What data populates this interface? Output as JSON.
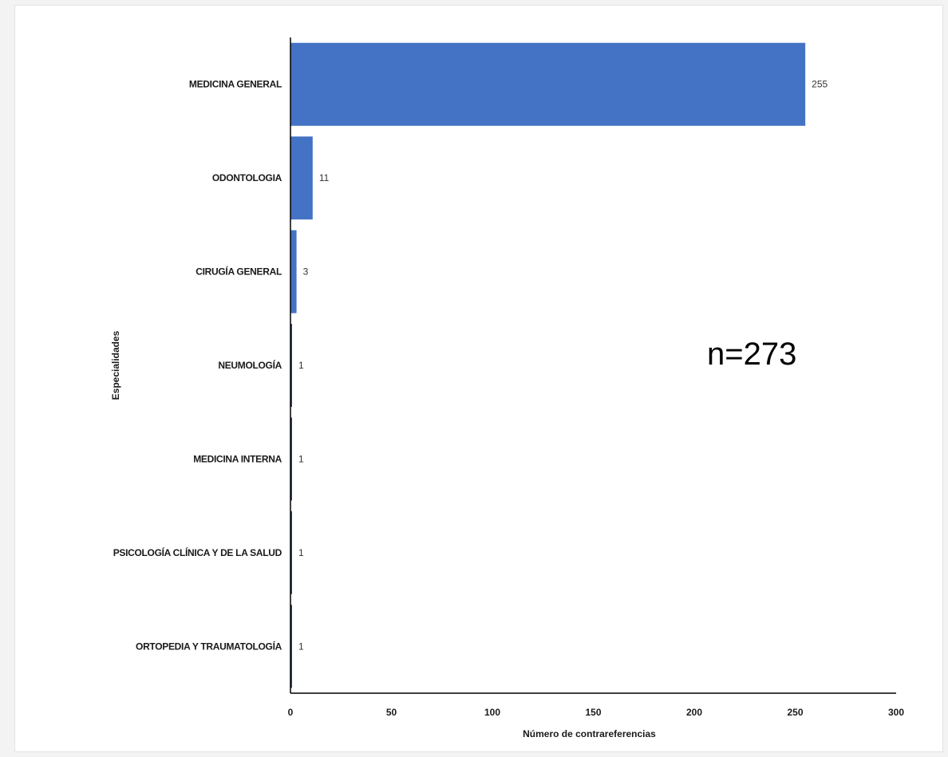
{
  "chart_data": {
    "type": "bar",
    "orientation": "horizontal",
    "categories": [
      "MEDICINA GENERAL",
      "ODONTOLOGIA",
      "CIRUGÍA GENERAL",
      "NEUMOLOGÍA",
      "MEDICINA INTERNA",
      "PSICOLOGÍA CLÍNICA Y DE LA SALUD",
      "ORTOPEDIA Y TRAUMATOLOGÍA"
    ],
    "values": [
      255,
      11,
      3,
      1,
      1,
      1,
      1
    ],
    "data_labels": [
      "255",
      "11",
      "3",
      "1",
      "1",
      "1",
      "1"
    ],
    "xlabel": "Número de contrareferencias",
    "ylabel": "Especialidades",
    "xlim": [
      0,
      300
    ],
    "xticks": [
      0,
      50,
      100,
      150,
      200,
      250,
      300
    ],
    "annotation": "n=273",
    "grid": false,
    "legend": "none",
    "colors": {
      "bar": "#4472c4",
      "thin_bar": "#2b3f8f",
      "axis": "#000000"
    }
  }
}
